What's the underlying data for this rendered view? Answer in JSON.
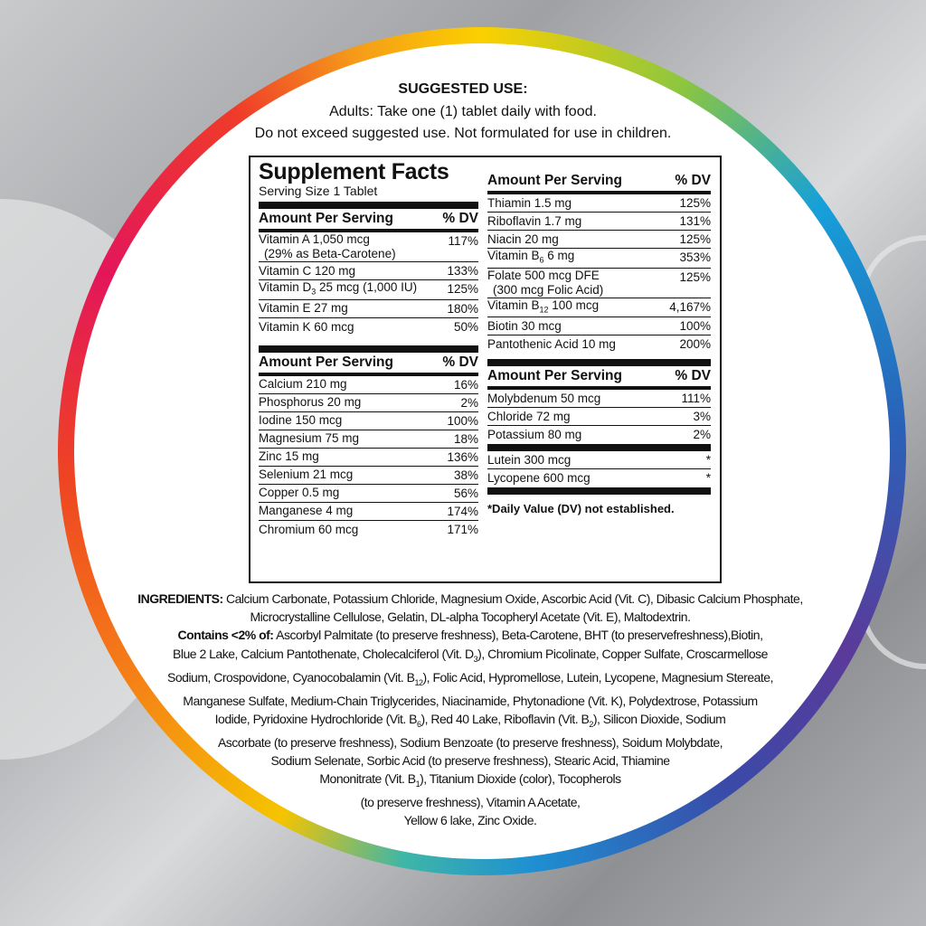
{
  "suggested_use": {
    "title": "SUGGESTED USE:",
    "lines": [
      "Adults: Take one (1) tablet daily with food.",
      "Do not exceed suggested use. Not formulated for use in children."
    ]
  },
  "facts": {
    "title": "Supplement Facts",
    "serving": "Serving Size 1 Tablet",
    "header_amount": "Amount Per Serving",
    "header_dv": "% DV",
    "left_sections": [
      [
        {
          "name": "Vitamin A 1,050 mcg",
          "note": "(29% as Beta-Carotene)",
          "dv": "117%"
        },
        {
          "name": "Vitamin C 120 mg",
          "dv": "133%"
        },
        {
          "name": "Vitamin D{3} 25 mcg (1,000 IU)",
          "dv": "125%"
        },
        {
          "name": "Vitamin E 27 mg",
          "dv": "180%"
        },
        {
          "name": "Vitamin K 60 mcg",
          "dv": "50%"
        }
      ],
      [
        {
          "name": "Calcium 210 mg",
          "dv": "16%"
        },
        {
          "name": "Phosphorus 20 mg",
          "dv": "2%"
        },
        {
          "name": "Iodine 150 mcg",
          "dv": "100%"
        },
        {
          "name": "Magnesium 75 mg",
          "dv": "18%"
        },
        {
          "name": "Zinc 15 mg",
          "dv": "136%"
        },
        {
          "name": "Selenium 21 mcg",
          "dv": "38%"
        },
        {
          "name": "Copper 0.5 mg",
          "dv": "56%"
        },
        {
          "name": "Manganese 4 mg",
          "dv": "174%"
        },
        {
          "name": "Chromium 60 mcg",
          "dv": "171%"
        }
      ]
    ],
    "right_sections": [
      [
        {
          "name": "Thiamin 1.5 mg",
          "dv": "125%"
        },
        {
          "name": "Riboflavin 1.7 mg",
          "dv": "131%"
        },
        {
          "name": "Niacin 20 mg",
          "dv": "125%"
        },
        {
          "name": "Vitamin B{6} 6 mg",
          "dv": "353%"
        },
        {
          "name": "Folate 500 mcg DFE",
          "note": "(300 mcg Folic Acid)",
          "dv": "125%"
        },
        {
          "name": "Vitamin B{12} 100 mcg",
          "dv": "4,167%"
        },
        {
          "name": "Biotin 30 mcg",
          "dv": "100%"
        },
        {
          "name": "Pantothenic Acid 10 mg",
          "dv": "200%"
        }
      ],
      [
        {
          "name": "Molybdenum 50 mcg",
          "dv": "111%"
        },
        {
          "name": "Chloride 72 mg",
          "dv": "3%"
        },
        {
          "name": "Potassium 80 mg",
          "dv": "2%"
        }
      ],
      [
        {
          "name": "Lutein 300 mcg",
          "dv": "*"
        },
        {
          "name": "Lycopene 600 mcg",
          "dv": "*"
        }
      ]
    ],
    "footnote": "*Daily Value (DV) not established."
  },
  "ingredients": {
    "lines": [
      "[INGREDIENTS:] Calcium Carbonate, Potassium Chloride, Magnesium Oxide, Ascorbic Acid (Vit. C), Dibasic Calcium Phosphate,",
      "Microcrystalline Cellulose, Gelatin, DL-alpha Tocopheryl Acetate (Vit. E), Maltodextrin.",
      "[Contains <2% of:] Ascorbyl Palmitate (to preserve freshness), Beta-Carotene, BHT (to preservefreshness),Biotin,",
      "Blue 2 Lake, Calcium Pantothenate, Cholecalciferol (Vit. D{3}), Chromium Picolinate, Copper Sulfate, Croscarmellose",
      "Sodium, Crospovidone, Cyanocobalamin (Vit. B{12}), Folic Acid, Hypromellose, Lutein, Lycopene, Magnesium Stereate,",
      "Manganese Sulfate, Medium-Chain Triglycerides, Niacinamide, Phytonadione (Vit. K), Polydextrose, Potassium",
      "Iodide, Pyridoxine Hydrochloride (Vit. B{6}), Red 40 Lake, Riboflavin (Vit. B{2}), Silicon Dioxide, Sodium",
      "Ascorbate (to preserve freshness), Sodium Benzoate (to preserve freshness), Soidum Molybdate,",
      "Sodium Selenate, Sorbic Acid (to preserve freshness), Stearic Acid, Thiamine",
      "Mononitrate (Vit. B{1}), Titanium Dioxide (color), Tocopherols",
      "(to preserve freshness), Vitamin A Acetate,",
      "Yellow 6 lake, Zinc Oxide."
    ]
  }
}
